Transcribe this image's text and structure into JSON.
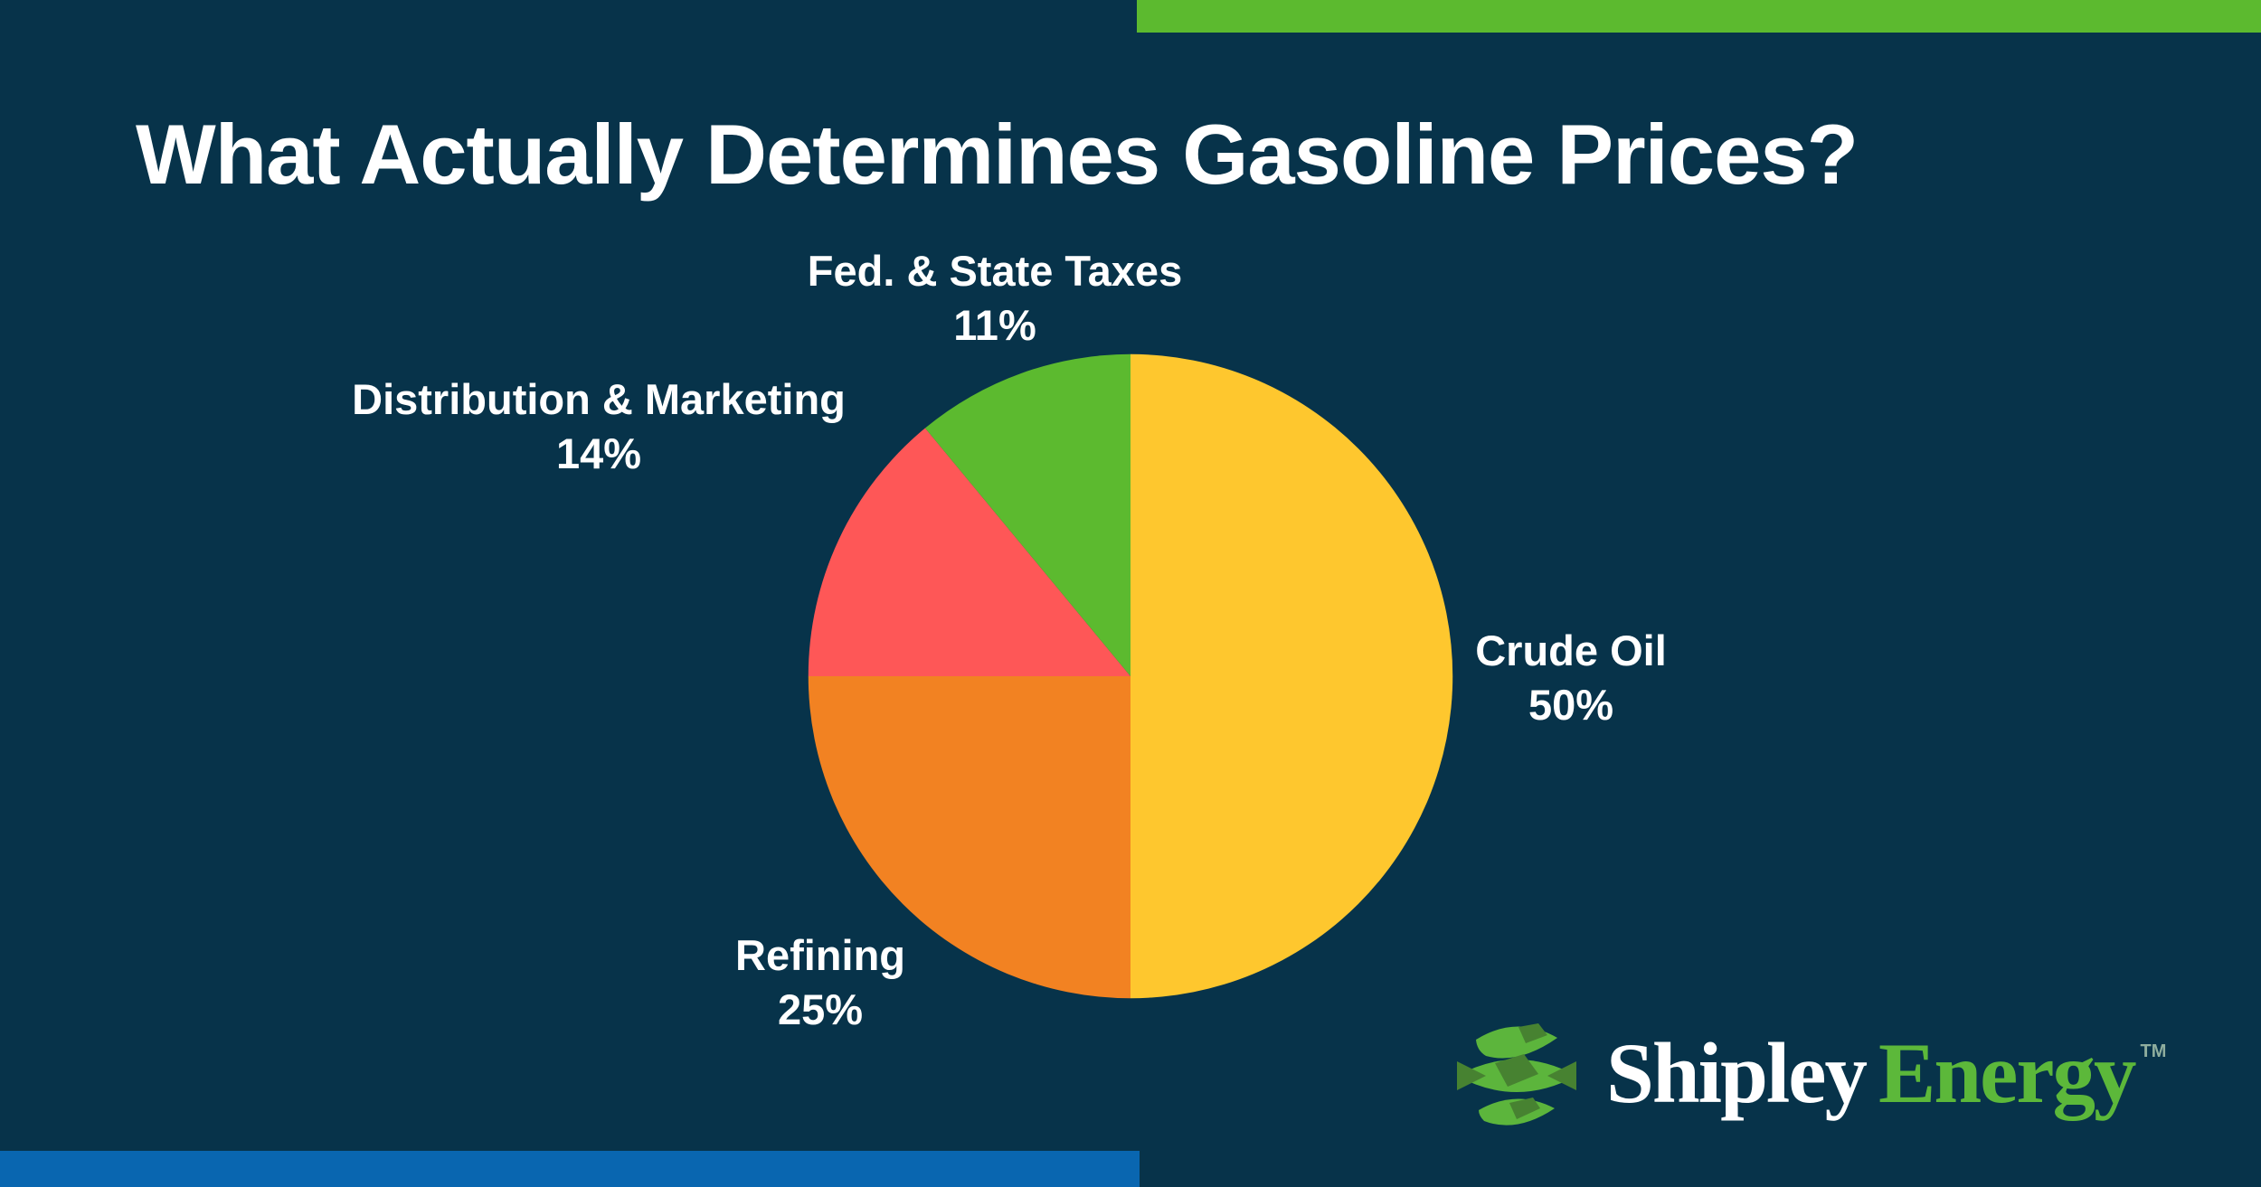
{
  "page": {
    "background_color": "#07334a",
    "top_bar_color": "#5cba2f",
    "bottom_bar_color": "#0966b0",
    "text_color": "#ffffff"
  },
  "title": "What Actually Determines Gasoline Prices?",
  "chart_data": {
    "type": "pie",
    "title": "What Actually Determines Gasoline Prices?",
    "unit": "percent",
    "start_angle_deg": 0,
    "direction": "clockwise",
    "legend_position": "labels-around-pie",
    "slices": [
      {
        "label": "Crude Oil",
        "value": 50,
        "percent_label": "50%",
        "color": "#fec72e"
      },
      {
        "label": "Refining",
        "value": 25,
        "percent_label": "25%",
        "color": "#f28222"
      },
      {
        "label": "Distribution & Marketing",
        "value": 14,
        "percent_label": "14%",
        "color": "#fe5757"
      },
      {
        "label": "Fed. & State Taxes",
        "value": 11,
        "percent_label": "11%",
        "color": "#5cba2f"
      }
    ]
  },
  "logo": {
    "brand_first": "Shipley",
    "brand_second": "Energy",
    "trademark": "TM",
    "icon": "shipley-globe-icon",
    "brand_first_color": "#ffffff",
    "brand_second_color": "#5cb83a",
    "icon_light_green": "#5cb53c",
    "icon_dark_green": "#478231"
  }
}
